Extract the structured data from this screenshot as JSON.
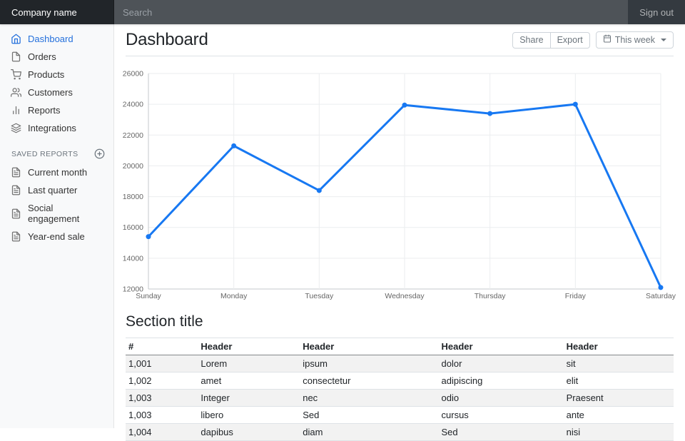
{
  "navbar": {
    "brand": "Company name",
    "search_placeholder": "Search",
    "sign_out": "Sign out"
  },
  "sidebar": {
    "items": [
      {
        "label": "Dashboard",
        "icon": "home-icon",
        "active": true
      },
      {
        "label": "Orders",
        "icon": "file-icon",
        "active": false
      },
      {
        "label": "Products",
        "icon": "shopping-cart-icon",
        "active": false
      },
      {
        "label": "Customers",
        "icon": "users-icon",
        "active": false
      },
      {
        "label": "Reports",
        "icon": "bar-chart-icon",
        "active": false
      },
      {
        "label": "Integrations",
        "icon": "layers-icon",
        "active": false
      }
    ],
    "saved_reports": {
      "heading": "Saved reports",
      "add_icon": "plus-circle-icon",
      "items": [
        {
          "label": "Current month",
          "icon": "file-text-icon"
        },
        {
          "label": "Last quarter",
          "icon": "file-text-icon"
        },
        {
          "label": "Social engagement",
          "icon": "file-text-icon"
        },
        {
          "label": "Year-end sale",
          "icon": "file-text-icon"
        }
      ]
    }
  },
  "page": {
    "title": "Dashboard"
  },
  "toolbar": {
    "share_label": "Share",
    "export_label": "Export",
    "week_label": "This week",
    "week_icon": "calendar-icon"
  },
  "chart_data": {
    "type": "line",
    "categories": [
      "Sunday",
      "Monday",
      "Tuesday",
      "Wednesday",
      "Thursday",
      "Friday",
      "Saturday"
    ],
    "values": [
      15400,
      21300,
      18400,
      23950,
      23400,
      24000,
      12100
    ],
    "title": "",
    "xlabel": "",
    "ylabel": "",
    "ylim": [
      12000,
      26000
    ],
    "ytick": 2000,
    "grid": true,
    "legend": "none",
    "line_color": "#1778f2",
    "point_radius": 3.5,
    "line_width": 3
  },
  "section": {
    "title": "Section title"
  },
  "table": {
    "columns": [
      "#",
      "Header",
      "Header",
      "Header",
      "Header"
    ],
    "rows": [
      [
        "1,001",
        "Lorem",
        "ipsum",
        "dolor",
        "sit"
      ],
      [
        "1,002",
        "amet",
        "consectetur",
        "adipiscing",
        "elit"
      ],
      [
        "1,003",
        "Integer",
        "nec",
        "odio",
        "Praesent"
      ],
      [
        "1,003",
        "libero",
        "Sed",
        "cursus",
        "ante"
      ],
      [
        "1,004",
        "dapibus",
        "diam",
        "Sed",
        "nisi"
      ]
    ]
  },
  "colors": {
    "accent": "#1778f2",
    "active_link": "#2470dc",
    "navbar_bg": "#343a40",
    "brand_bg": "#212529",
    "sidebar_bg": "#f8f9fa"
  }
}
